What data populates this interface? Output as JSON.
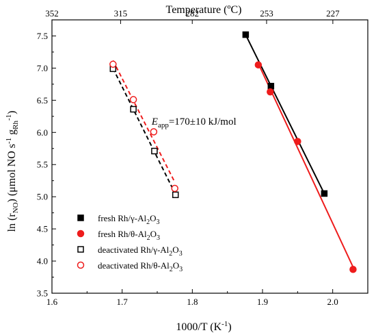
{
  "chart_data": {
    "type": "scatter",
    "xlabel": "1000/T (K",
    "xlabel_sup": "-1",
    "xlabel_end": ")",
    "ylabel_parts": {
      "a": "ln (r",
      "a_sub": "NO",
      "b": ") (μmol NO s",
      "b_sup": "-1",
      "c": " g",
      "c_sub": "Rh",
      "c_sup": "-1",
      "d": ")"
    },
    "top_xlabel": "Temperature (ºC)",
    "xlim": [
      1.6,
      2.05
    ],
    "ylim": [
      3.5,
      7.75
    ],
    "x_ticks": [
      "1.6",
      "1.7",
      "1.8",
      "1.9",
      "2.0"
    ],
    "y_ticks": [
      "3.5",
      "4.0",
      "4.5",
      "5.0",
      "5.5",
      "6.0",
      "6.5",
      "7.0",
      "7.5"
    ],
    "top_ticks": [
      {
        "label": "352",
        "x": 1.6
      },
      {
        "label": "315",
        "x": 1.6978
      },
      {
        "label": "282",
        "x": 1.7999
      },
      {
        "label": "253",
        "x": 1.9058
      },
      {
        "label": "227",
        "x": 2.0002
      }
    ],
    "annotation": {
      "E": "E",
      "sub": "app",
      "rest": "=170±10 kJ/mol",
      "x": 1.742,
      "y": 6.12
    },
    "series": [
      {
        "name_parts": [
          "fresh Rh/γ-Al",
          "2",
          "O",
          "3"
        ],
        "marker": "square",
        "filled": true,
        "color": "#000000",
        "line": "solid",
        "x": [
          1.876,
          1.912,
          1.988
        ],
        "y": [
          7.52,
          6.72,
          5.05
        ]
      },
      {
        "name_parts": [
          "fresh Rh/θ-Al",
          "2",
          "O",
          "3"
        ],
        "marker": "circle",
        "filled": true,
        "color": "#ee1c1c",
        "line": "solid",
        "x": [
          1.894,
          1.911,
          1.95,
          2.029
        ],
        "y": [
          7.05,
          6.63,
          5.86,
          3.87
        ]
      },
      {
        "name_parts": [
          "deactivated Rh/γ-Al",
          "2",
          "O",
          "3"
        ],
        "marker": "square",
        "filled": false,
        "color": "#000000",
        "line": "dashed",
        "x": [
          1.687,
          1.716,
          1.746,
          1.776
        ],
        "y": [
          6.99,
          6.36,
          5.71,
          5.03
        ]
      },
      {
        "name_parts": [
          "deactivated Rh/θ-Al",
          "2",
          "O",
          "3"
        ],
        "marker": "circle",
        "filled": false,
        "color": "#ee1c1c",
        "line": "dashed",
        "x": [
          1.687,
          1.716,
          1.745,
          1.775
        ],
        "y": [
          7.06,
          6.51,
          6.01,
          5.13
        ]
      }
    ],
    "legend_position": "bottom-left",
    "grid": false
  }
}
